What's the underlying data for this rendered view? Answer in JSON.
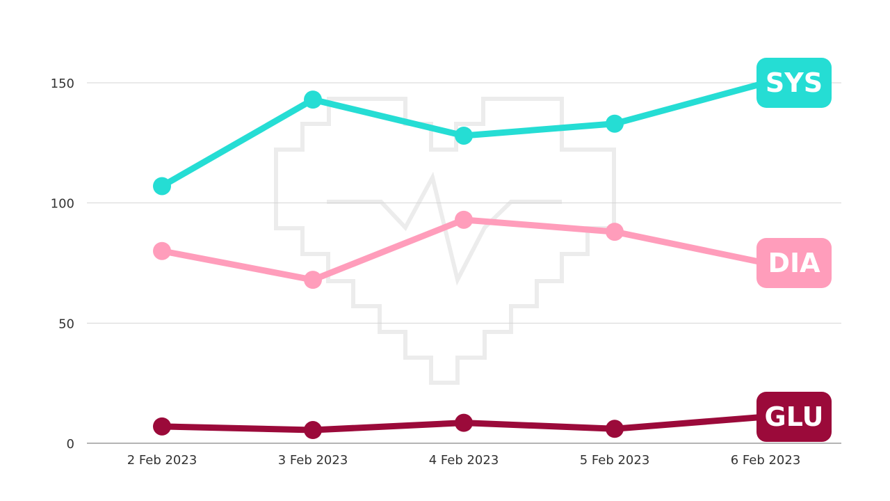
{
  "chart_data": {
    "type": "line",
    "categories": [
      "2 Feb 2023",
      "3 Feb 2023",
      "4 Feb 2023",
      "5 Feb 2023",
      "6 Feb 2023"
    ],
    "ylim": [
      0,
      150
    ],
    "yticks": [
      "0",
      "50",
      "100",
      "150"
    ],
    "grid": true,
    "legend": "labels at line ends",
    "series": [
      {
        "name": "SYS",
        "color": "#25DDD4",
        "values": [
          107,
          143,
          128,
          133,
          150
        ]
      },
      {
        "name": "DIA",
        "color": "#FF9DBB",
        "values": [
          80,
          68,
          93,
          88,
          75
        ]
      },
      {
        "name": "GLU",
        "color": "#9B0A3A",
        "values": [
          7,
          5.5,
          8.5,
          6,
          11
        ]
      }
    ]
  }
}
